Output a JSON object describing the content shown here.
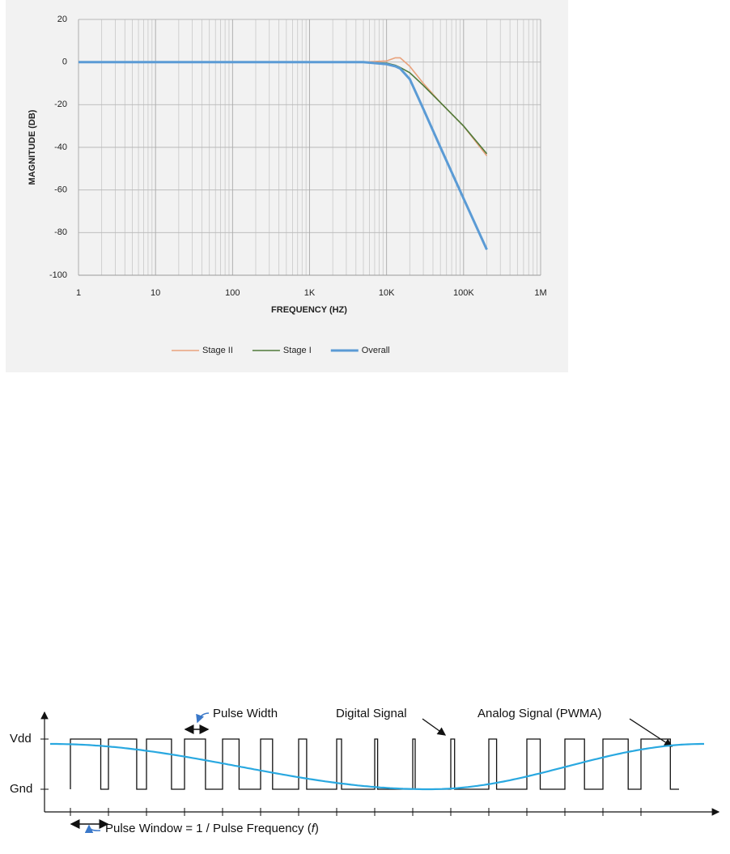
{
  "chart_data": {
    "type": "line",
    "y_label": "MAGNITUDE (DB)",
    "x_label": "FREQUENCY (HZ)",
    "x": [
      1,
      10,
      100,
      1000,
      5000,
      10000,
      13000,
      15000,
      20000,
      30000,
      50000,
      100000,
      200000
    ],
    "series": [
      {
        "name": "Stage II",
        "color": "#e9a27c",
        "values": [
          0,
          0,
          0,
          0,
          0,
          0.5,
          2,
          2,
          -2,
          -10,
          -19,
          -30,
          -44
        ]
      },
      {
        "name": "Stage I",
        "color": "#4f7a3a",
        "values": [
          0,
          0,
          0,
          0,
          0,
          -0.5,
          -1.5,
          -2.5,
          -5,
          -11,
          -19,
          -30,
          -43
        ]
      },
      {
        "name": "Overall",
        "color": "#5b9bd5",
        "values": [
          0,
          0,
          0,
          0,
          0,
          -1,
          -2,
          -3,
          -8,
          -22,
          -40,
          -64,
          -88
        ]
      }
    ],
    "xscale": "log",
    "xlim": [
      1,
      1000000
    ],
    "xticks": [
      1,
      10,
      100,
      {
        "value": 1000,
        "label": "1K"
      },
      {
        "value": 10000,
        "label": "10K"
      },
      {
        "value": 100000,
        "label": "100K"
      },
      {
        "value": 1000000,
        "label": "1M"
      }
    ],
    "ylim": [
      -100,
      20
    ],
    "yticks": [
      -100,
      -80,
      -60,
      -40,
      -20,
      0,
      20
    ],
    "grid": true,
    "legend": "bottom"
  },
  "diagram": {
    "vdd": "Vdd",
    "gnd": "Gnd",
    "pulse_width": "Pulse Width",
    "digital_signal": "Digital Signal",
    "analog_signal": "Analog Signal (PWMA)",
    "pulse_window": [
      "Pulse Window  = 1 / Pulse Frequency (",
      "f",
      ")"
    ]
  }
}
